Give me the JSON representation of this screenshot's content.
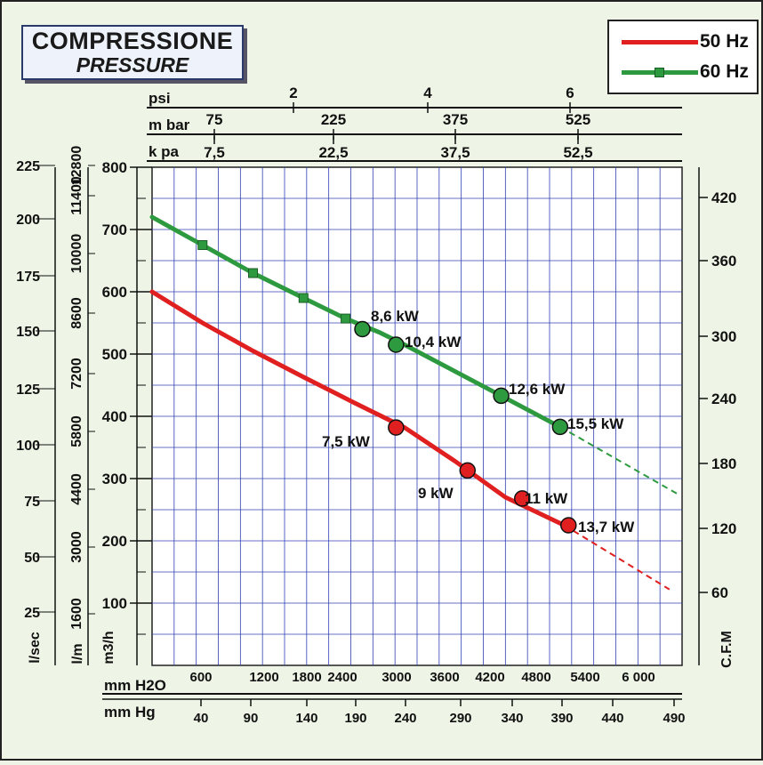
{
  "title": {
    "line1": "COMPRESSIONE",
    "line2": "PRESSURE"
  },
  "legend": [
    {
      "label": "50 Hz",
      "color": "#e02020"
    },
    {
      "label": "60 Hz",
      "color": "#2e9a3f",
      "marker": "square"
    }
  ],
  "top_axes": {
    "psi": {
      "label": "psi",
      "ticks": [
        "2",
        "4",
        "6"
      ]
    },
    "mbar": {
      "label": "m bar",
      "ticks": [
        "75",
        "225",
        "375",
        "525"
      ]
    },
    "kpa": {
      "label": "k pa",
      "ticks": [
        "7,5",
        "22,5",
        "37,5",
        "52,5"
      ]
    }
  },
  "left_axes": {
    "lsec": {
      "label": "l/sec",
      "ticks": [
        "25",
        "50",
        "75",
        "100",
        "125",
        "150",
        "175",
        "200",
        "225"
      ]
    },
    "lm": {
      "label": "l/m",
      "ticks": [
        "1600",
        "3000",
        "4400",
        "5800",
        "7200",
        "8600",
        "10000",
        "11400",
        "12800"
      ]
    },
    "m3h": {
      "label": "m3/h",
      "ticks": [
        "100",
        "200",
        "300",
        "400",
        "500",
        "600",
        "700",
        "800"
      ]
    }
  },
  "right_axis": {
    "label": "C.F.M",
    "ticks": [
      "60",
      "120",
      "180",
      "240",
      "300",
      "360",
      "420"
    ]
  },
  "bottom_axes": {
    "h2o": {
      "label": "mm H2O",
      "ticks": [
        "600",
        "1200",
        "1800",
        "2400",
        "3000",
        "3600",
        "4200",
        "4800",
        "5400",
        "6 000"
      ]
    },
    "hg": {
      "label": "mm Hg",
      "ticks": [
        "40",
        "90",
        "140",
        "190",
        "240",
        "290",
        "340",
        "390",
        "440",
        "490"
      ]
    }
  },
  "chart_data": {
    "type": "line",
    "title": "COMPRESSIONE PRESSURE",
    "xlabel": "mm H2O",
    "ylabel": "m3/h",
    "xlim": [
      0,
      6300
    ],
    "ylim": [
      0,
      800
    ],
    "grid": true,
    "legend_position": "top-right",
    "series": [
      {
        "name": "60 Hz",
        "color": "#2e9a3f",
        "marker": "square",
        "x": [
          0,
          600,
          1200,
          1800,
          2300,
          2700,
          3000,
          4150,
          4850
        ],
        "y": [
          720,
          675,
          630,
          590,
          557,
          535,
          515,
          433,
          383
        ],
        "extrapolated": {
          "x": [
            4850,
            6250
          ],
          "y": [
            383,
            275
          ]
        },
        "operating_points": [
          {
            "label": "8,6 kW",
            "x": 2500,
            "y": 540
          },
          {
            "label": "10,4 kW",
            "x": 2900,
            "y": 515
          },
          {
            "label": "12,6 kW",
            "x": 4150,
            "y": 433
          },
          {
            "label": "15,5 kW",
            "x": 4850,
            "y": 383
          }
        ]
      },
      {
        "name": "50 Hz",
        "color": "#e02020",
        "x": [
          0,
          600,
          1200,
          1800,
          2400,
          3000,
          3600,
          4200,
          4900
        ],
        "y": [
          600,
          550,
          505,
          463,
          422,
          382,
          328,
          270,
          225
        ],
        "extrapolated": {
          "x": [
            4900,
            6150
          ],
          "y": [
            225,
            122
          ]
        },
        "operating_points": [
          {
            "label": "7,5 kW",
            "x": 2900,
            "y": 382
          },
          {
            "label": "9 kW",
            "x": 3750,
            "y": 313
          },
          {
            "label": "11 kW",
            "x": 4400,
            "y": 268
          },
          {
            "label": "13,7 kW",
            "x": 4950,
            "y": 225
          }
        ]
      }
    ]
  }
}
